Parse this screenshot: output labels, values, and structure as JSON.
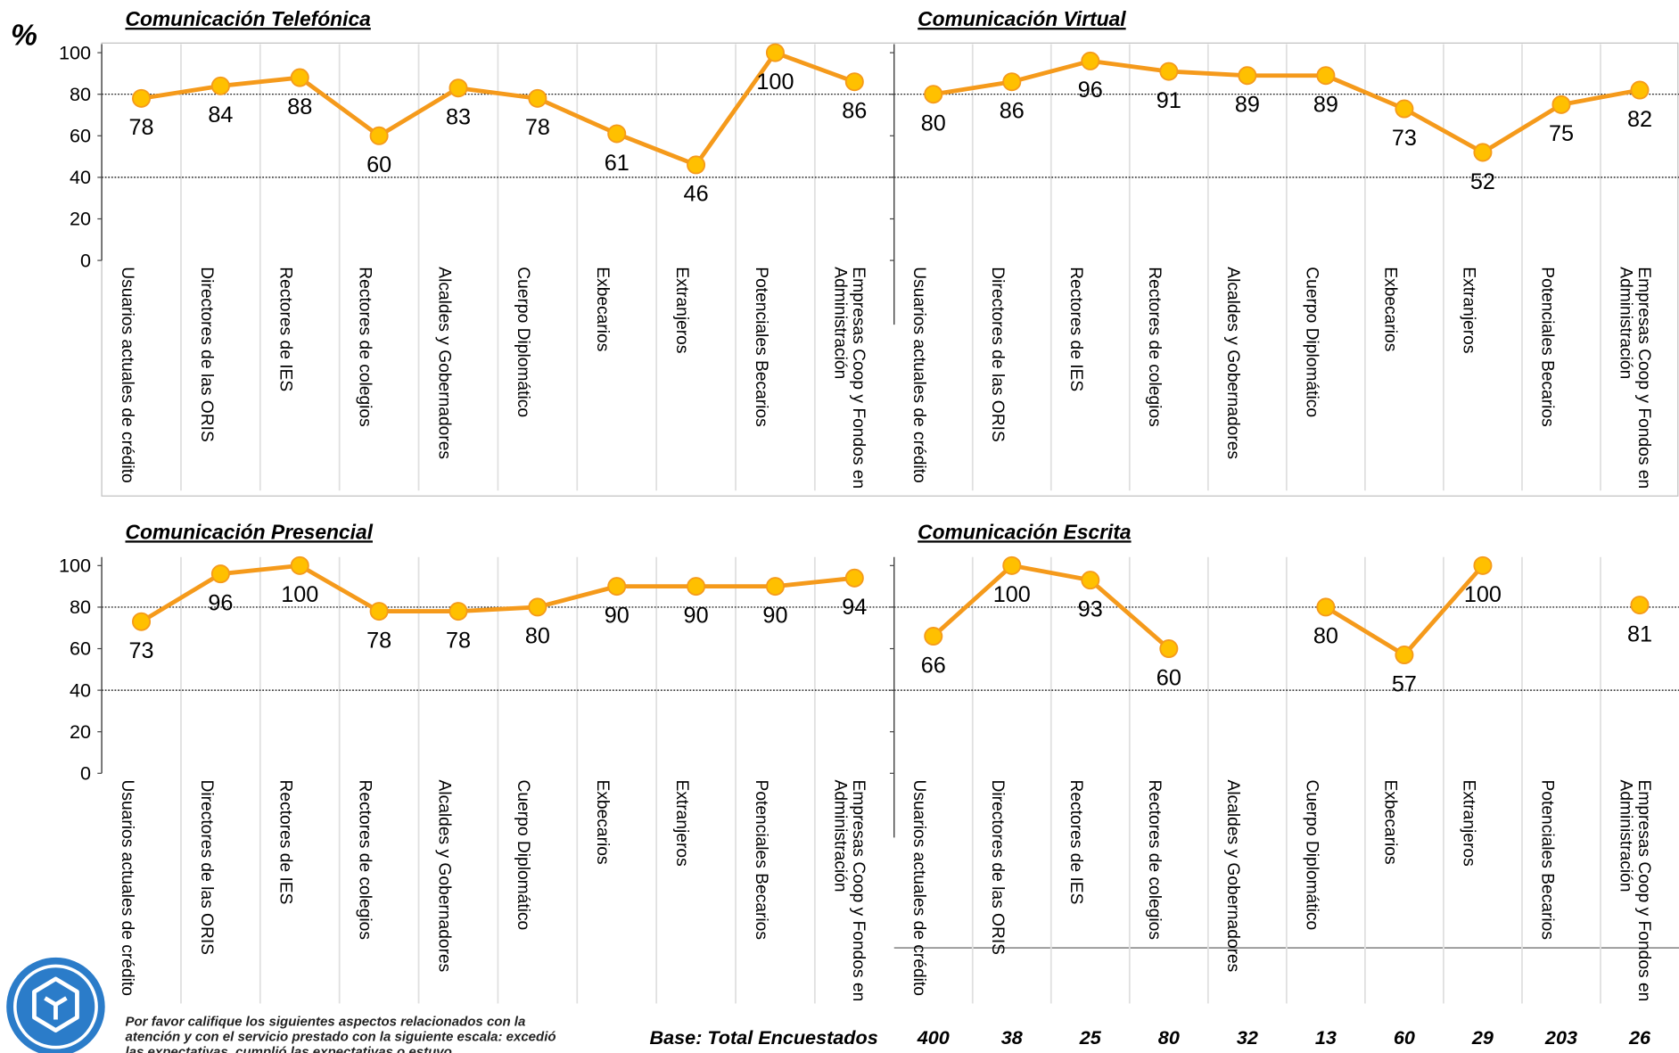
{
  "y_unit": "%",
  "chart_data": [
    {
      "type": "line",
      "title": "Comunicación Telefónica",
      "categories": [
        "Usuarios actuales de crédito",
        "Directores de las ORIS",
        "Rectores de IES",
        "Rectores de colegios",
        "Alcaldes y Gobernadores",
        "Cuerpo Diplomático",
        "Exbecarios",
        "Extranjeros",
        "Potenciales Becarios",
        "Empresas Coop y Fondos en Administración"
      ],
      "values": [
        78,
        84,
        88,
        60,
        83,
        78,
        61,
        46,
        100,
        86
      ],
      "color": "#f59a1b",
      "marker_color": "#ffc000",
      "ylim": [
        0,
        100
      ],
      "yticks": [
        0,
        20,
        40,
        60,
        80,
        100
      ],
      "ytick_labels": true,
      "ygrid": [
        40,
        80
      ]
    },
    {
      "type": "line",
      "title": "Comunicación Virtual",
      "categories": [
        "Usuarios actuales de crédito",
        "Directores de las ORIS",
        "Rectores de IES",
        "Rectores de colegios",
        "Alcaldes y Gobernadores",
        "Cuerpo Diplomático",
        "Exbecarios",
        "Extranjeros",
        "Potenciales Becarios",
        "Empresas Coop y Fondos en Administración"
      ],
      "values": [
        80,
        86,
        96,
        91,
        89,
        89,
        73,
        52,
        75,
        82
      ],
      "color": "#f59a1b",
      "marker_color": "#ffc000",
      "ylim": [
        0,
        100
      ],
      "yticks": [
        0,
        20,
        40,
        60,
        80,
        100
      ],
      "ytick_labels": false,
      "ygrid": [
        40,
        80
      ]
    },
    {
      "type": "line",
      "title": "Comunicación Presencial",
      "categories": [
        "Usuarios actuales de crédito",
        "Directores de las ORIS",
        "Rectores de IES",
        "Rectores de colegios",
        "Alcaldes y Gobernadores",
        "Cuerpo Diplomático",
        "Exbecarios",
        "Extranjeros",
        "Potenciales Becarios",
        "Empresas Coop y Fondos en Administración"
      ],
      "values": [
        73,
        96,
        100,
        78,
        78,
        80,
        90,
        90,
        90,
        94
      ],
      "color": "#f59a1b",
      "marker_color": "#ffc000",
      "ylim": [
        0,
        100
      ],
      "yticks": [
        0,
        20,
        40,
        60,
        80,
        100
      ],
      "ytick_labels": true,
      "ygrid": [
        40,
        80
      ]
    },
    {
      "type": "line",
      "title": "Comunicación Escrita",
      "categories": [
        "Usuarios actuales de crédito",
        "Directores de las ORIS",
        "Rectores de IES",
        "Rectores de colegios",
        "Alcaldes y Gobernadores",
        "Cuerpo Diplomático",
        "Exbecarios",
        "Extranjeros",
        "Potenciales Becarios",
        "Empresas Coop y Fondos en Administración"
      ],
      "values": [
        66,
        100,
        93,
        60,
        null,
        80,
        57,
        100,
        null,
        81
      ],
      "color": "#f59a1b",
      "marker_color": "#ffc000",
      "ylim": [
        0,
        100
      ],
      "yticks": [
        0,
        20,
        40,
        60,
        80,
        100
      ],
      "ytick_labels": false,
      "ygrid": [
        40,
        80
      ]
    }
  ],
  "base": {
    "label": "Base: Total Encuestados",
    "counts": [
      400,
      38,
      25,
      80,
      32,
      13,
      60,
      29,
      203,
      26
    ]
  },
  "footnote": "Por favor califique los siguientes aspectos relacionados con la atención y con el servicio prestado con la siguiente escala: excedió las expectativas, cumplió las expectativas o estuvo"
}
